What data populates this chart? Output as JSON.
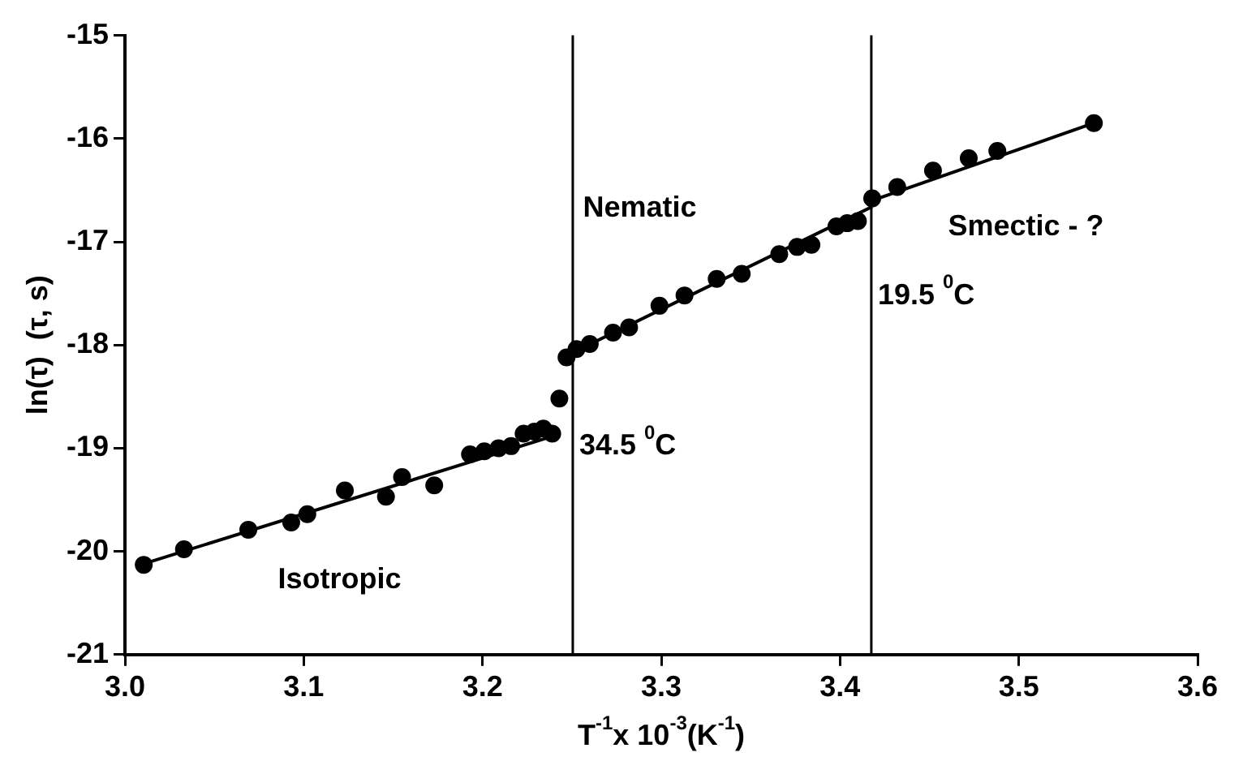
{
  "chart_data": {
    "type": "scatter",
    "xlabel": "T$^{-1}$x 10$^{-3}$(K$^{-1}$)",
    "ylabel": "ln(τ)  (τ, s)",
    "xlim": [
      3.0,
      3.6
    ],
    "xticks": [
      {
        "value": 3,
        "label": "3.0"
      },
      3.1,
      3.2,
      3.3,
      3.4,
      3.5,
      3.6
    ],
    "ylim": [
      -21,
      -15
    ],
    "yticks": [
      -21,
      -20,
      -19,
      -18,
      -17,
      -16,
      -15
    ],
    "grid": false,
    "legend": false,
    "marker": "circle",
    "series": [
      {
        "color": "#000000",
        "x": [
          3.0105,
          3.033,
          3.069,
          3.093,
          3.102,
          3.123,
          3.146,
          3.155,
          3.173,
          3.193,
          3.201,
          3.209,
          3.216,
          3.223,
          3.229,
          3.234,
          3.239,
          3.243,
          3.247,
          3.2526,
          3.26,
          3.273,
          3.282,
          3.299,
          3.313,
          3.331,
          3.345,
          3.366,
          3.376,
          3.384,
          3.398,
          3.404,
          3.41,
          3.418,
          3.432,
          3.452,
          3.472,
          3.488,
          3.542
        ],
        "values": [
          -20.13,
          -19.98,
          -19.79,
          -19.72,
          -19.64,
          -19.41,
          -19.47,
          -19.28,
          -19.36,
          -19.06,
          -19.03,
          -19.0,
          -18.98,
          -18.86,
          -18.84,
          -18.81,
          -18.86,
          -18.52,
          -18.12,
          -18.04,
          -17.99,
          -17.88,
          -17.83,
          -17.62,
          -17.52,
          -17.36,
          -17.31,
          -17.12,
          -17.05,
          -17.03,
          -16.85,
          -16.82,
          -16.8,
          -16.58,
          -16.47,
          -16.31,
          -16.19,
          -16.12,
          -15.85
        ]
      },
      {
        "type": "line",
        "color": "#000000",
        "marker": "none",
        "x": [
          3.0105,
          3.24
        ],
        "values": [
          -20.12,
          -18.88
        ]
      },
      {
        "type": "line",
        "color": "#000000",
        "marker": "none",
        "x": [
          3.245,
          3.418
        ],
        "values": [
          -18.12,
          -16.66
        ]
      },
      {
        "type": "line",
        "color": "#000000",
        "marker": "none",
        "x": [
          3.418,
          3.542
        ],
        "values": [
          -16.6,
          -15.85
        ]
      }
    ],
    "ref_lines": [
      {
        "axis": "x",
        "value": 3.2505,
        "label": "34.5 $^{0}$C",
        "color": "#000000"
      },
      {
        "axis": "x",
        "value": 3.4175,
        "label": "19.5 $^{0}$C",
        "color": "#000000"
      }
    ],
    "annotations": [
      "Isotropic",
      "Nematic",
      "Smectic - ?"
    ]
  }
}
